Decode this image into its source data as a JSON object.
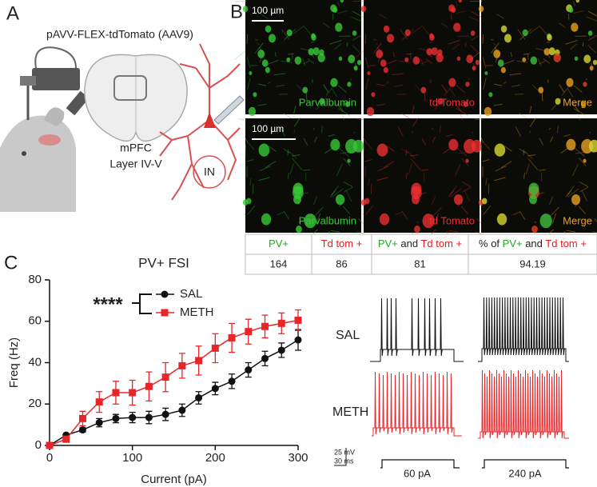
{
  "panels": {
    "a": {
      "label": "A",
      "construct": "pAVV-FLEX-tdTomato (AAV9)",
      "region": "mPFC",
      "layer": "Layer IV-V",
      "cell": "IN"
    },
    "b": {
      "label": "B",
      "scale_bars": [
        "100 µm",
        "100 µm"
      ],
      "channels": [
        [
          "Parvalbumin",
          "td Tomato",
          "Merge"
        ],
        [
          "Parvalbumin",
          "td Tomato",
          "Merge"
        ]
      ]
    },
    "c": {
      "label": "C"
    }
  },
  "table": {
    "header": [
      [
        {
          "text": "PV+",
          "color": "#22a822"
        }
      ],
      [
        {
          "text": "Td tom +",
          "color": "#e02020"
        }
      ],
      [
        {
          "text": "PV+",
          "color": "#22a822"
        },
        {
          "text": " and ",
          "color": "#222222"
        },
        {
          "text": "Td tom +",
          "color": "#e02020"
        }
      ],
      [
        {
          "text": "% of ",
          "color": "#222222"
        },
        {
          "text": "PV+",
          "color": "#22a822"
        },
        {
          "text": " and ",
          "color": "#222222"
        },
        {
          "text": "Td tom +",
          "color": "#e02020"
        }
      ]
    ],
    "rows": [
      [
        "164",
        "86",
        "81",
        "94.19"
      ]
    ]
  },
  "chart_data": {
    "type": "line",
    "title": "PV+ FSI",
    "x_label": "Current (pA)",
    "y_label": "Freq (Hz)",
    "annotation": "****",
    "x": [
      0,
      20,
      40,
      60,
      80,
      100,
      120,
      140,
      160,
      180,
      200,
      220,
      240,
      260,
      280,
      300
    ],
    "series": [
      {
        "name": "SAL",
        "color": "#111111",
        "marker": "circle",
        "values": [
          0,
          5,
          7.5,
          11,
          13,
          13.5,
          13.5,
          15,
          17,
          23,
          27.5,
          31,
          36.5,
          42,
          46,
          51
        ],
        "errors": [
          0,
          0.5,
          1,
          2,
          2,
          2.5,
          3,
          3,
          3,
          3,
          3,
          3.5,
          3.5,
          3.5,
          3.5,
          5
        ]
      },
      {
        "name": "METH",
        "color": "#e8262a",
        "marker": "square",
        "values": [
          0,
          3,
          13,
          21,
          25.5,
          25.5,
          28.5,
          33,
          38.5,
          41,
          47,
          52,
          55,
          57.5,
          59,
          60.5
        ],
        "errors": [
          0,
          0.5,
          3.5,
          5,
          5.5,
          6,
          7,
          7,
          6,
          7,
          7,
          7,
          6,
          5.5,
          5,
          5
        ]
      }
    ],
    "xlim": [
      0,
      300
    ],
    "xticks": [
      0,
      100,
      200,
      300
    ],
    "ylim": [
      0,
      80
    ],
    "yticks": [
      0,
      20,
      40,
      60,
      80
    ]
  },
  "traces": {
    "groups": [
      "SAL",
      "METH"
    ],
    "scale": [
      "25 mV",
      "30 ms"
    ],
    "steps": [
      "60 pA",
      "240 pA"
    ]
  }
}
